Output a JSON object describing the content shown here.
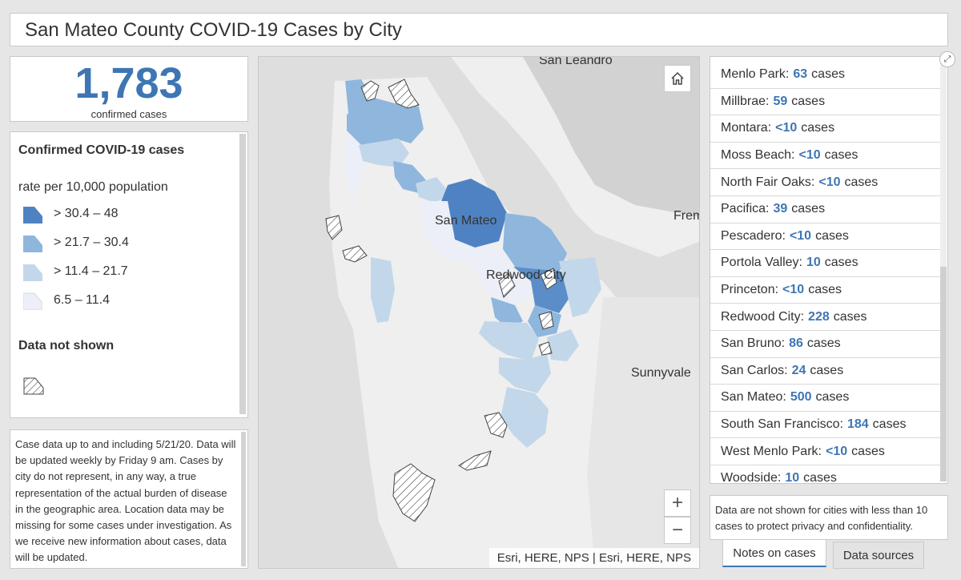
{
  "header": {
    "title": "San Mateo County COVID-19 Cases by City"
  },
  "summary": {
    "count": "1,783",
    "caption": "confirmed cases"
  },
  "legend": {
    "title": "Confirmed COVID-19 cases",
    "subtitle": "rate per 10,000 population",
    "classes": [
      {
        "label": "> 30.4 – 48",
        "color": "#4f82c2"
      },
      {
        "label": "> 21.7 – 30.4",
        "color": "#8fb6dd"
      },
      {
        "label": "> 11.4 – 21.7",
        "color": "#c3d7ea"
      },
      {
        "label": "6.5 – 11.4",
        "color": "#eceef8"
      }
    ],
    "no_data_label": "Data not shown"
  },
  "note": "Case data up to and including 5/21/20. Data will be updated weekly by Friday 9 am. Cases by city do not represent, in any way, a true representation of the actual burden of disease in the geographic area. Location data may be missing for some cases under investigation. As we receive new information about cases, data will be updated.",
  "map": {
    "labels": {
      "san_leandro": "San Leandro",
      "fremont": "Frem",
      "san_mateo": "San Mateo",
      "redwood_city": "Redwood City",
      "sunnyvale": "Sunnyvale"
    },
    "attribution": "Esri, HERE, NPS | Esri, HERE, NPS",
    "zoom_in": "+",
    "zoom_out": "−",
    "home_icon": "home-icon"
  },
  "city_list": [
    {
      "city": "Menlo Park:",
      "count": "63",
      "suffix": "cases"
    },
    {
      "city": "Millbrae:",
      "count": "59",
      "suffix": "cases"
    },
    {
      "city": "Montara:",
      "count": "<10",
      "suffix": "cases"
    },
    {
      "city": "Moss Beach:",
      "count": "<10",
      "suffix": "cases"
    },
    {
      "city": "North Fair Oaks:",
      "count": "<10",
      "suffix": "cases"
    },
    {
      "city": "Pacifica:",
      "count": "39",
      "suffix": "cases"
    },
    {
      "city": "Pescadero:",
      "count": "<10",
      "suffix": "cases"
    },
    {
      "city": "Portola Valley:",
      "count": "10",
      "suffix": "cases"
    },
    {
      "city": "Princeton:",
      "count": "<10",
      "suffix": "cases"
    },
    {
      "city": "Redwood City:",
      "count": "228",
      "suffix": "cases"
    },
    {
      "city": "San Bruno:",
      "count": "86",
      "suffix": "cases"
    },
    {
      "city": "San Carlos:",
      "count": "24",
      "suffix": "cases"
    },
    {
      "city": "San Mateo:",
      "count": "500",
      "suffix": "cases"
    },
    {
      "city": "South San Francisco:",
      "count": "184",
      "suffix": "cases"
    },
    {
      "city": "West Menlo Park:",
      "count": "<10",
      "suffix": "cases"
    },
    {
      "city": "Woodside:",
      "count": "10",
      "suffix": "cases"
    }
  ],
  "privacy_note": "Data are not shown for cities with less than 10 cases to protect privacy and confidentiality.",
  "tabs": {
    "notes": "Notes on cases",
    "sources": "Data sources"
  },
  "colors": {
    "accent": "#3e76b4",
    "map_water": "#dedede",
    "map_land": "#efefef"
  }
}
